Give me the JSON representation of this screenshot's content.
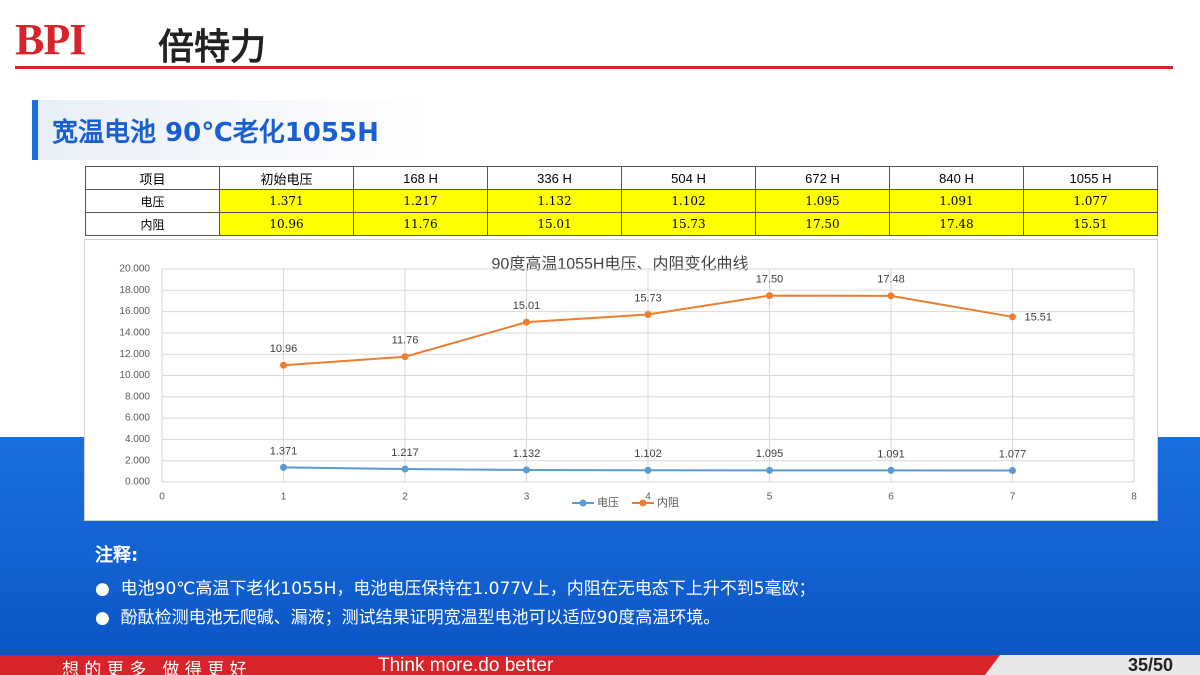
{
  "header": {
    "logo_latin": "BPI",
    "logo_cn": "倍特力",
    "title": "宽温电池 90℃老化1055H"
  },
  "table": {
    "header": [
      "项目",
      "初始电压",
      "168 H",
      "336 H",
      "504 H",
      "672 H",
      "840 H",
      "1055 H"
    ],
    "rows": [
      [
        "电压",
        "1.371",
        "1.217",
        "1.132",
        "1.102",
        "1.095",
        "1.091",
        "1.077"
      ],
      [
        "内阻",
        "10.96",
        "11.76",
        "15.01",
        "15.73",
        "17.50",
        "17.48",
        "15.51"
      ]
    ]
  },
  "chart_data": {
    "type": "line",
    "title": "90度高温1055H电压、内阻变化曲线",
    "x": [
      1,
      2,
      3,
      4,
      5,
      6,
      7
    ],
    "xlim": [
      0,
      8
    ],
    "xticks": [
      0,
      1,
      2,
      3,
      4,
      5,
      6,
      7,
      8
    ],
    "ylim": [
      0,
      20
    ],
    "yticks": [
      {
        "value": 0,
        "label": "0.000"
      },
      {
        "value": 2,
        "label": "2.000"
      },
      {
        "value": 4,
        "label": "4.000"
      },
      {
        "value": 6,
        "label": "6.000"
      },
      {
        "value": 8,
        "label": "8.000"
      },
      {
        "value": 10,
        "label": "10.000"
      },
      {
        "value": 12,
        "label": "12.000"
      },
      {
        "value": 14,
        "label": "14.000"
      },
      {
        "value": 16,
        "label": "16.000"
      },
      {
        "value": 18,
        "label": "18.000"
      },
      {
        "value": 20,
        "label": "20.000"
      }
    ],
    "grid": true,
    "legend": "bottom",
    "series": [
      {
        "name": "电压",
        "color": "#5b9bd5",
        "values": [
          1.371,
          1.217,
          1.132,
          1.102,
          1.095,
          1.091,
          1.077
        ]
      },
      {
        "name": "内阻",
        "color": "#ed7d31",
        "values": [
          10.96,
          11.76,
          15.01,
          15.73,
          17.5,
          17.48,
          15.51
        ],
        "value_labels": [
          "10.96",
          "11.76",
          "15.01",
          "15.73",
          "17.50",
          "17.48",
          "15.51"
        ]
      }
    ]
  },
  "notes": {
    "heading": "注释:",
    "items": [
      "电池90℃高温下老化1055H，电池电压保持在1.077V上，内阻在无电态下上升不到5毫欧；",
      "酚酞检测电池无爬碱、漏液；测试结果证明宽温型电池可以适应90度高温环境。"
    ]
  },
  "footer": {
    "slogan_cn": "想 的 更 多   做 得 更 好",
    "slogan_en": "Think more.do better",
    "page": "35/50"
  }
}
